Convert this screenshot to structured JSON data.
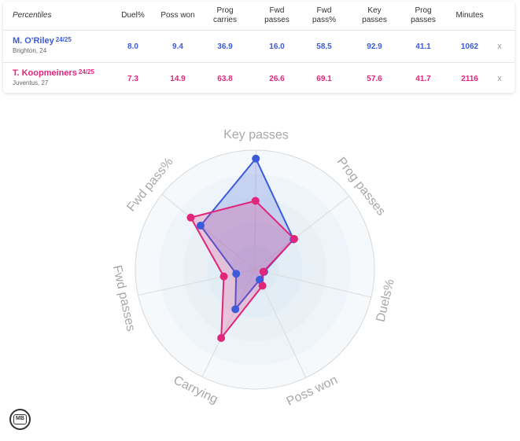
{
  "table": {
    "headers": [
      "Percentiles",
      "Duel%",
      "Poss won",
      "Prog carries",
      "Fwd passes",
      "Fwd pass%",
      "Key passes",
      "Prog passes",
      "Minutes"
    ],
    "remove_label": "x",
    "players": [
      {
        "name": "M. O'Riley",
        "season": "24/25",
        "subtitle": "Brighton, 24",
        "color": "#3b5bdb",
        "values": [
          "8.0",
          "9.4",
          "36.9",
          "16.0",
          "58.5",
          "92.9",
          "41.1",
          "1062"
        ]
      },
      {
        "name": "T. Koopmeiners",
        "season": "24/25",
        "subtitle": "Juventus, 27",
        "color": "#e0267a",
        "values": [
          "7.3",
          "14.9",
          "63.8",
          "26.6",
          "69.1",
          "57.6",
          "41.7",
          "2116"
        ]
      }
    ]
  },
  "chart_data": {
    "type": "radar",
    "axes": [
      "Key passes",
      "Prog passes",
      "Duels%",
      "Poss won",
      "Carrying",
      "Fwd passes",
      "Fwd pass%"
    ],
    "range": [
      0,
      100
    ],
    "series": [
      {
        "name": "M. O'Riley",
        "color": "#3b5bdb",
        "values": [
          92.9,
          41.1,
          8.0,
          9.4,
          36.9,
          16.0,
          58.5
        ]
      },
      {
        "name": "T. Koopmeiners",
        "color": "#e0267a",
        "values": [
          57.6,
          41.7,
          7.3,
          14.9,
          63.8,
          26.6,
          69.1
        ]
      }
    ]
  },
  "logo": {
    "text": "MB"
  }
}
